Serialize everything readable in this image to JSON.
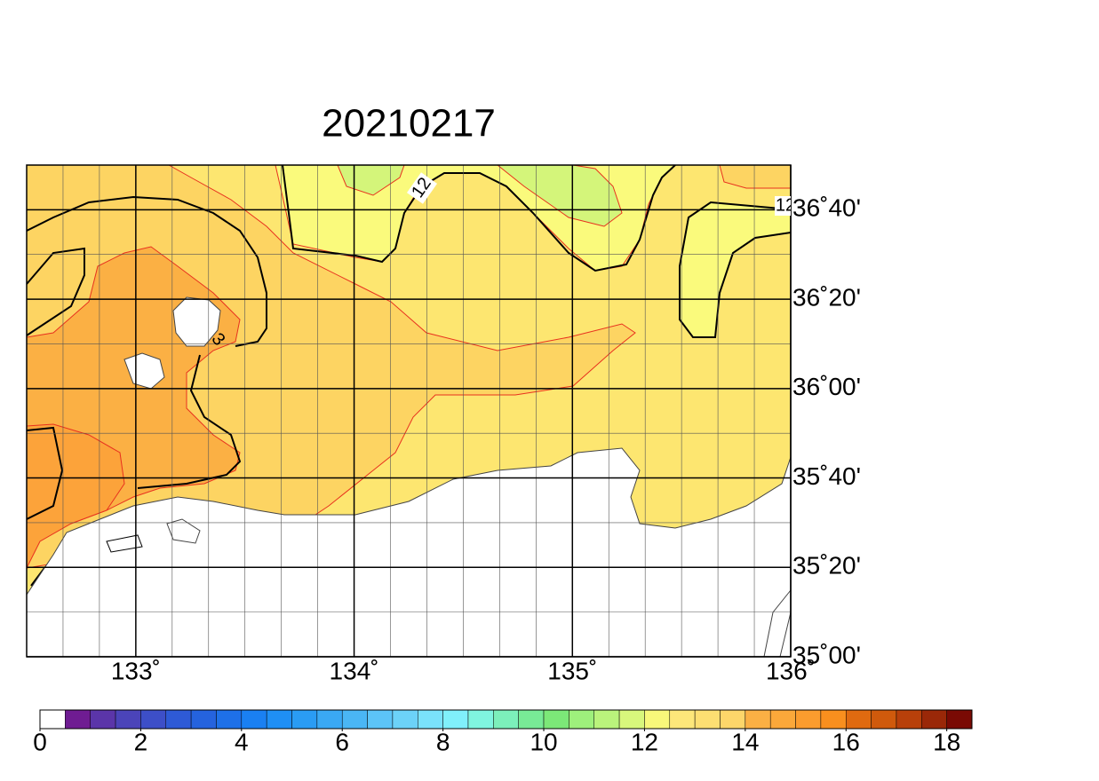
{
  "title": "20210217",
  "map": {
    "lon_range": [
      132.5,
      136
    ],
    "lat_range": [
      35,
      36.8333
    ],
    "lon_ticks": [
      {
        "value": 133,
        "label": "133˚"
      },
      {
        "value": 134,
        "label": "134˚"
      },
      {
        "value": 135,
        "label": "135˚"
      },
      {
        "value": 136,
        "label": "136˚"
      }
    ],
    "lat_ticks": [
      {
        "value": 35,
        "label": "35˚00'"
      },
      {
        "value": 35.3333,
        "label": "35˚20'"
      },
      {
        "value": 35.6667,
        "label": "35˚40'"
      },
      {
        "value": 36,
        "label": "36˚00'"
      },
      {
        "value": 36.3333,
        "label": "36˚20'"
      },
      {
        "value": 36.6667,
        "label": "36˚40'"
      }
    ],
    "contour_labels": [
      "12",
      "12",
      "3"
    ]
  },
  "colorbar": {
    "range": [
      0,
      18.5
    ],
    "ticks": [
      0,
      2,
      4,
      6,
      8,
      10,
      12,
      14,
      16,
      18
    ],
    "colors": [
      "#ffffff",
      "#6f1c92",
      "#5b35a9",
      "#4b44b9",
      "#3d4fc8",
      "#2e5ad6",
      "#2563de",
      "#1e70e8",
      "#1a80f2",
      "#1f8ff5",
      "#2a9cf4",
      "#3aa9f4",
      "#4ab6f5",
      "#5cc4f7",
      "#6cd2f8",
      "#7ae2fb",
      "#80f0fb",
      "#80f5e0",
      "#7cf0bb",
      "#78ea96",
      "#7ce878",
      "#9ef07c",
      "#baf37c",
      "#d8f77c",
      "#f8f87a",
      "#fde77a",
      "#fddf72",
      "#fdd66a",
      "#fbb044",
      "#fba83a",
      "#fb9c2e",
      "#f98f1e",
      "#e06a10",
      "#d05a0c",
      "#b8400a",
      "#9a2808",
      "#7a0a04"
    ]
  }
}
